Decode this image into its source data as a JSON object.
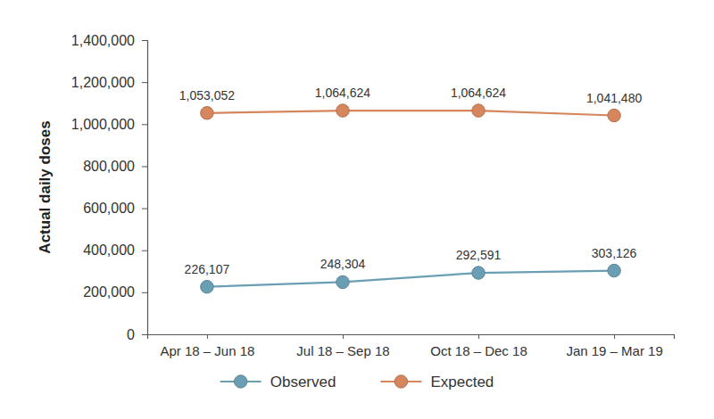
{
  "chart_data": {
    "type": "line",
    "y_label": "Actual daily doses",
    "categories": [
      "Apr 18 – Jun 18",
      "Jul 18 – Sep 18",
      "Oct 18 – Dec 18",
      "Jan 19 – Mar 19"
    ],
    "series": [
      {
        "name": "Observed",
        "color": "#6a9fb3",
        "marker": "circle",
        "line_style": "solid",
        "values": [
          226107,
          248304,
          292591,
          303126
        ],
        "value_labels": [
          "226,107",
          "248,304",
          "292,591",
          "303,126"
        ]
      },
      {
        "name": "Expected",
        "color": "#d6865c",
        "marker": "circle",
        "line_style": "solid",
        "values": [
          1053052,
          1064624,
          1064624,
          1041480
        ],
        "value_labels": [
          "1,053,052",
          "1,064,624",
          "1,064,624",
          "1,041,480"
        ]
      }
    ],
    "ylim": [
      0,
      1400000
    ],
    "yticks": [
      0,
      {
        "value": 200000,
        "label": "200,000"
      },
      {
        "value": 400000,
        "label": "400,000"
      },
      {
        "value": 600000,
        "label": "600,000"
      },
      {
        "value": 800000,
        "label": "800,000"
      },
      {
        "value": 1000000,
        "label": "1,000,000"
      },
      {
        "value": 1200000,
        "label": "1,200,000"
      },
      {
        "value": 1400000,
        "label": "1,400,000"
      }
    ],
    "grid": false,
    "legend": "bottom",
    "data_labels": true
  }
}
